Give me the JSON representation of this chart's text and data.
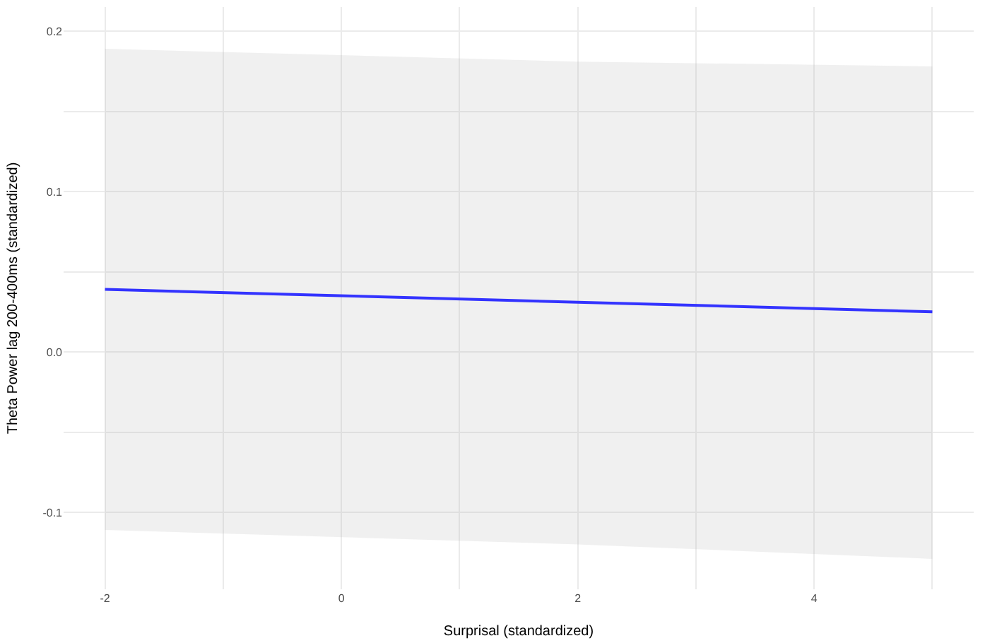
{
  "chart_data": {
    "type": "line",
    "xlabel": "Surprisal (standardized)",
    "ylabel": "Theta Power lag 200-400ms (standardized)",
    "xlim": [
      -2.35,
      5.35
    ],
    "ylim": [
      -0.148,
      0.215
    ],
    "xticks": [
      -2,
      {
        "value": -1,
        "label": null
      },
      0,
      {
        "value": 1,
        "label": null
      },
      2,
      {
        "value": 3,
        "label": null
      },
      4,
      {
        "value": 5,
        "label": null
      }
    ],
    "yticks": [
      {
        "value": -0.1,
        "label": "-0.1"
      },
      {
        "value": -0.05,
        "label": null
      },
      {
        "value": 0,
        "label": "0.0"
      },
      {
        "value": 0.05,
        "label": null
      },
      {
        "value": 0.1,
        "label": "0.1"
      },
      {
        "value": 0.15,
        "label": null
      },
      {
        "value": 0.2,
        "label": "0.2"
      }
    ],
    "grid": true,
    "series": [
      {
        "color": "#3333ff",
        "x": [
          -2,
          2,
          5
        ],
        "values": [
          0.039,
          0.031,
          0.025
        ],
        "lower": [
          -0.111,
          -0.12,
          -0.129
        ],
        "upper": [
          0.189,
          0.181,
          0.178
        ]
      }
    ]
  }
}
